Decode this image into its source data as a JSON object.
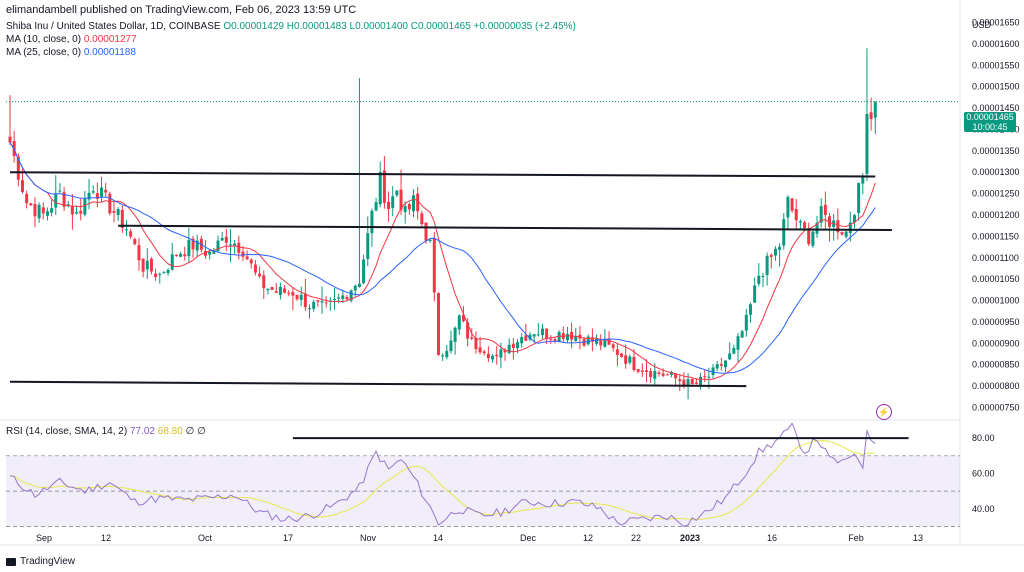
{
  "header": "elimandambell published on TradingView.com, Feb 06, 2023 13:59 UTC",
  "legend": {
    "symbol": "Shiba Inu / United States Dollar, 1D, COINBASE",
    "ohlc": "O0.00001429 H0.00001483 L0.00001400 C0.00001465 +0.00000035 (+2.45%)",
    "ma10_label": "MA (10, close, 0)",
    "ma10_value": "0.00001277",
    "ma25_label": "MA (25, close, 0)",
    "ma25_value": "0.00001188"
  },
  "rsi_legend": {
    "label": "RSI (14, close, SMA, 14, 2)",
    "value1": "77.02",
    "value2": "68.80",
    "extra": "∅ ∅"
  },
  "price_tag": {
    "price": "0.00001465",
    "countdown": "10:00:45"
  },
  "footer": "TradingView",
  "colors": {
    "up": "#089981",
    "down": "#f23645",
    "ma10": "#f23645",
    "ma25": "#2962ff",
    "rsi": "#9575cd",
    "rsi_ma": "#e8e84a",
    "trendline": "#131722"
  },
  "chart_data": [
    {
      "type": "candlestick",
      "currency": "USD",
      "ylim": [
        7.3e-06,
        1.67e-05
      ],
      "y_ticks": [
        "0.00000750",
        "0.00000800",
        "0.00000850",
        "0.00000900",
        "0.00000950",
        "0.00001000",
        "0.00001050",
        "0.00001100",
        "0.00001150",
        "0.00001200",
        "0.00001250",
        "0.00001300",
        "0.00001350",
        "0.00001400",
        "0.00001450",
        "0.00001500",
        "0.00001550",
        "0.00001600",
        "0.00001650"
      ],
      "x_ticks": [
        "Sep",
        "12",
        "Oct",
        "17",
        "Nov",
        "14",
        "Dec",
        "12",
        "22",
        "2023",
        "16",
        "Feb",
        "13"
      ],
      "last_price": 1.465e-05,
      "close_anchors": [
        [
          0,
          1.37e-05
        ],
        [
          4,
          1.23e-05
        ],
        [
          8,
          1.2e-05
        ],
        [
          12,
          1.25e-05
        ],
        [
          16,
          1.2e-05
        ],
        [
          20,
          1.27e-05
        ],
        [
          24,
          1.22e-05
        ],
        [
          28,
          1.17e-05
        ],
        [
          32,
          1.08e-05
        ],
        [
          36,
          1.06e-05
        ],
        [
          40,
          1.11e-05
        ],
        [
          44,
          1.13e-05
        ],
        [
          48,
          1.11e-05
        ],
        [
          52,
          1.15e-05
        ],
        [
          56,
          1.12e-05
        ],
        [
          60,
          1.04e-05
        ],
        [
          64,
          1.02e-05
        ],
        [
          68,
          1.02e-05
        ],
        [
          72,
          9.9e-06
        ],
        [
          76,
          9.8e-06
        ],
        [
          80,
          1.01e-05
        ],
        [
          84,
          1.05e-05
        ],
        [
          87,
          1.2e-05
        ],
        [
          89,
          1.28e-05
        ],
        [
          91,
          1.22e-05
        ],
        [
          93,
          1.26e-05
        ],
        [
          95,
          1.2e-05
        ],
        [
          97,
          1.23e-05
        ],
        [
          99,
          1.18e-05
        ],
        [
          101,
          1.13e-05
        ],
        [
          103,
          8.8e-06
        ],
        [
          106,
          9e-06
        ],
        [
          108,
          9.6e-06
        ],
        [
          111,
          9e-06
        ],
        [
          114,
          8.9e-06
        ],
        [
          117,
          8.6e-06
        ],
        [
          119,
          8.9e-06
        ],
        [
          122,
          9.1e-06
        ],
        [
          126,
          9.3e-06
        ],
        [
          130,
          9.2e-06
        ],
        [
          134,
          9.25e-06
        ],
        [
          138,
          9.1e-06
        ],
        [
          142,
          9e-06
        ],
        [
          146,
          8.8e-06
        ],
        [
          150,
          8.5e-06
        ],
        [
          154,
          8.35e-06
        ],
        [
          158,
          8.25e-06
        ],
        [
          162,
          8.1e-06
        ],
        [
          164,
          8e-06
        ],
        [
          166,
          8.1e-06
        ],
        [
          169,
          8.3e-06
        ],
        [
          172,
          8.6e-06
        ],
        [
          174,
          8.8e-06
        ],
        [
          177,
          9.5e-06
        ],
        [
          180,
          1.06e-05
        ],
        [
          183,
          1.1e-05
        ],
        [
          185,
          1.13e-05
        ],
        [
          187,
          1.23e-05
        ],
        [
          190,
          1.17e-05
        ],
        [
          192,
          1.15e-05
        ],
        [
          195,
          1.2e-05
        ],
        [
          198,
          1.18e-05
        ],
        [
          201,
          1.16e-05
        ],
        [
          203,
          1.22e-05
        ],
        [
          205,
          1.29e-05
        ],
        [
          206,
          1.46e-05
        ],
        [
          207,
          1.43e-05
        ],
        [
          208,
          1.465e-05
        ]
      ],
      "ma10_last": 1.277e-05,
      "ma25_last": 1.188e-05,
      "trendlines": [
        {
          "from": [
            0,
            1.3e-05
          ],
          "to": [
            208,
            1.29e-05
          ]
        },
        {
          "from": [
            26,
            1.175e-05
          ],
          "to": [
            212,
            1.165e-05
          ]
        },
        {
          "from": [
            0,
            8.1e-06
          ],
          "to": [
            177,
            8e-06
          ]
        }
      ]
    },
    {
      "type": "line",
      "name": "RSI",
      "ylim": [
        28,
        88
      ],
      "y_ticks": [
        "40.00",
        "60.00",
        "80.00"
      ],
      "band": [
        30,
        70
      ],
      "values_anchors": [
        [
          0,
          58
        ],
        [
          6,
          48
        ],
        [
          12,
          55
        ],
        [
          18,
          50
        ],
        [
          24,
          55
        ],
        [
          30,
          44
        ],
        [
          36,
          46
        ],
        [
          42,
          45
        ],
        [
          48,
          46
        ],
        [
          54,
          48
        ],
        [
          60,
          38
        ],
        [
          66,
          34
        ],
        [
          72,
          36
        ],
        [
          78,
          42
        ],
        [
          84,
          52
        ],
        [
          88,
          72
        ],
        [
          91,
          62
        ],
        [
          94,
          68
        ],
        [
          97,
          58
        ],
        [
          100,
          45
        ],
        [
          103,
          32
        ],
        [
          108,
          40
        ],
        [
          113,
          36
        ],
        [
          118,
          38
        ],
        [
          124,
          44
        ],
        [
          130,
          43
        ],
        [
          136,
          44
        ],
        [
          142,
          40
        ],
        [
          146,
          32
        ],
        [
          152,
          34
        ],
        [
          158,
          36
        ],
        [
          162,
          32
        ],
        [
          166,
          36
        ],
        [
          172,
          46
        ],
        [
          176,
          58
        ],
        [
          180,
          72
        ],
        [
          184,
          78
        ],
        [
          188,
          86
        ],
        [
          191,
          72
        ],
        [
          194,
          80
        ],
        [
          197,
          68
        ],
        [
          201,
          66
        ],
        [
          203,
          72
        ],
        [
          205,
          65
        ],
        [
          206,
          82
        ],
        [
          208,
          78
        ]
      ],
      "ma_last": 68.8,
      "trendline": {
        "from": [
          68,
          80
        ],
        "to": [
          216,
          80
        ]
      }
    }
  ]
}
